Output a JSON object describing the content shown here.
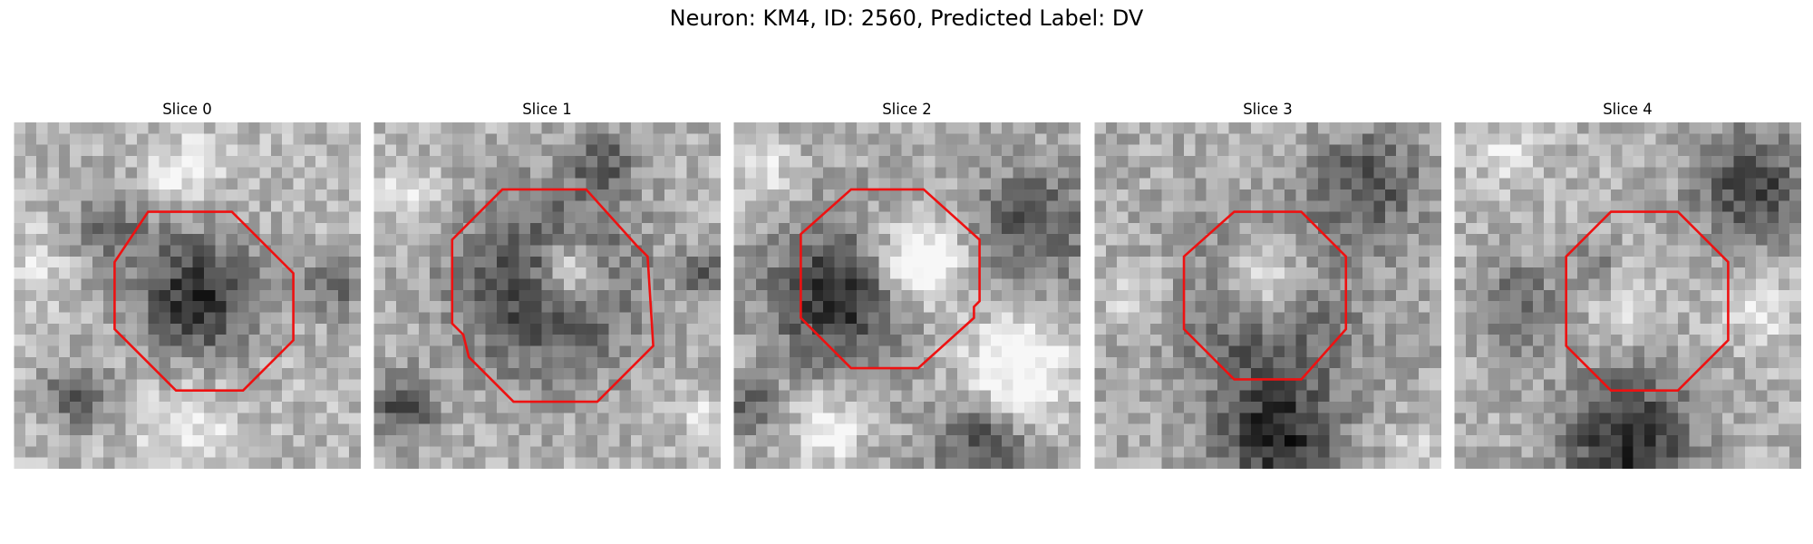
{
  "figure": {
    "title": "Neuron: KM4, ID: 2560, Predicted Label: DV",
    "contour_color": "#ee1111"
  },
  "slices": [
    {
      "title": "Slice 0"
    },
    {
      "title": "Slice 1"
    },
    {
      "title": "Slice 2"
    },
    {
      "title": "Slice 3"
    },
    {
      "title": "Slice 4"
    }
  ]
}
